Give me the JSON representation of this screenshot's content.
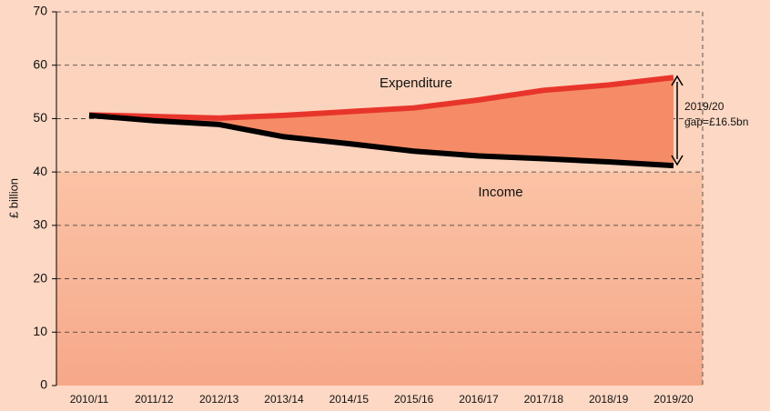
{
  "chart_data": {
    "type": "line",
    "y_label": "£ billion",
    "categories": [
      "2010/11",
      "2011/12",
      "2012/13",
      "2013/14",
      "2014/15",
      "2015/16",
      "2016/17",
      "2017/18",
      "2018/19",
      "2019/20"
    ],
    "series": [
      {
        "name": "Expenditure",
        "color": "#e8352b",
        "values": [
          50.7,
          50.4,
          50.1,
          50.6,
          51.3,
          52.0,
          53.5,
          55.3,
          56.3,
          57.7
        ]
      },
      {
        "name": "Income",
        "color": "#000000",
        "values": [
          50.6,
          49.6,
          48.9,
          46.6,
          45.3,
          43.9,
          43.0,
          42.5,
          41.9,
          41.2
        ]
      }
    ],
    "annotations": [
      "2019/20",
      "gap=£16.5bn"
    ],
    "ylim": [
      0,
      70
    ],
    "yticks": [
      0,
      10,
      20,
      30,
      40,
      50,
      60,
      70
    ],
    "grid": true
  }
}
